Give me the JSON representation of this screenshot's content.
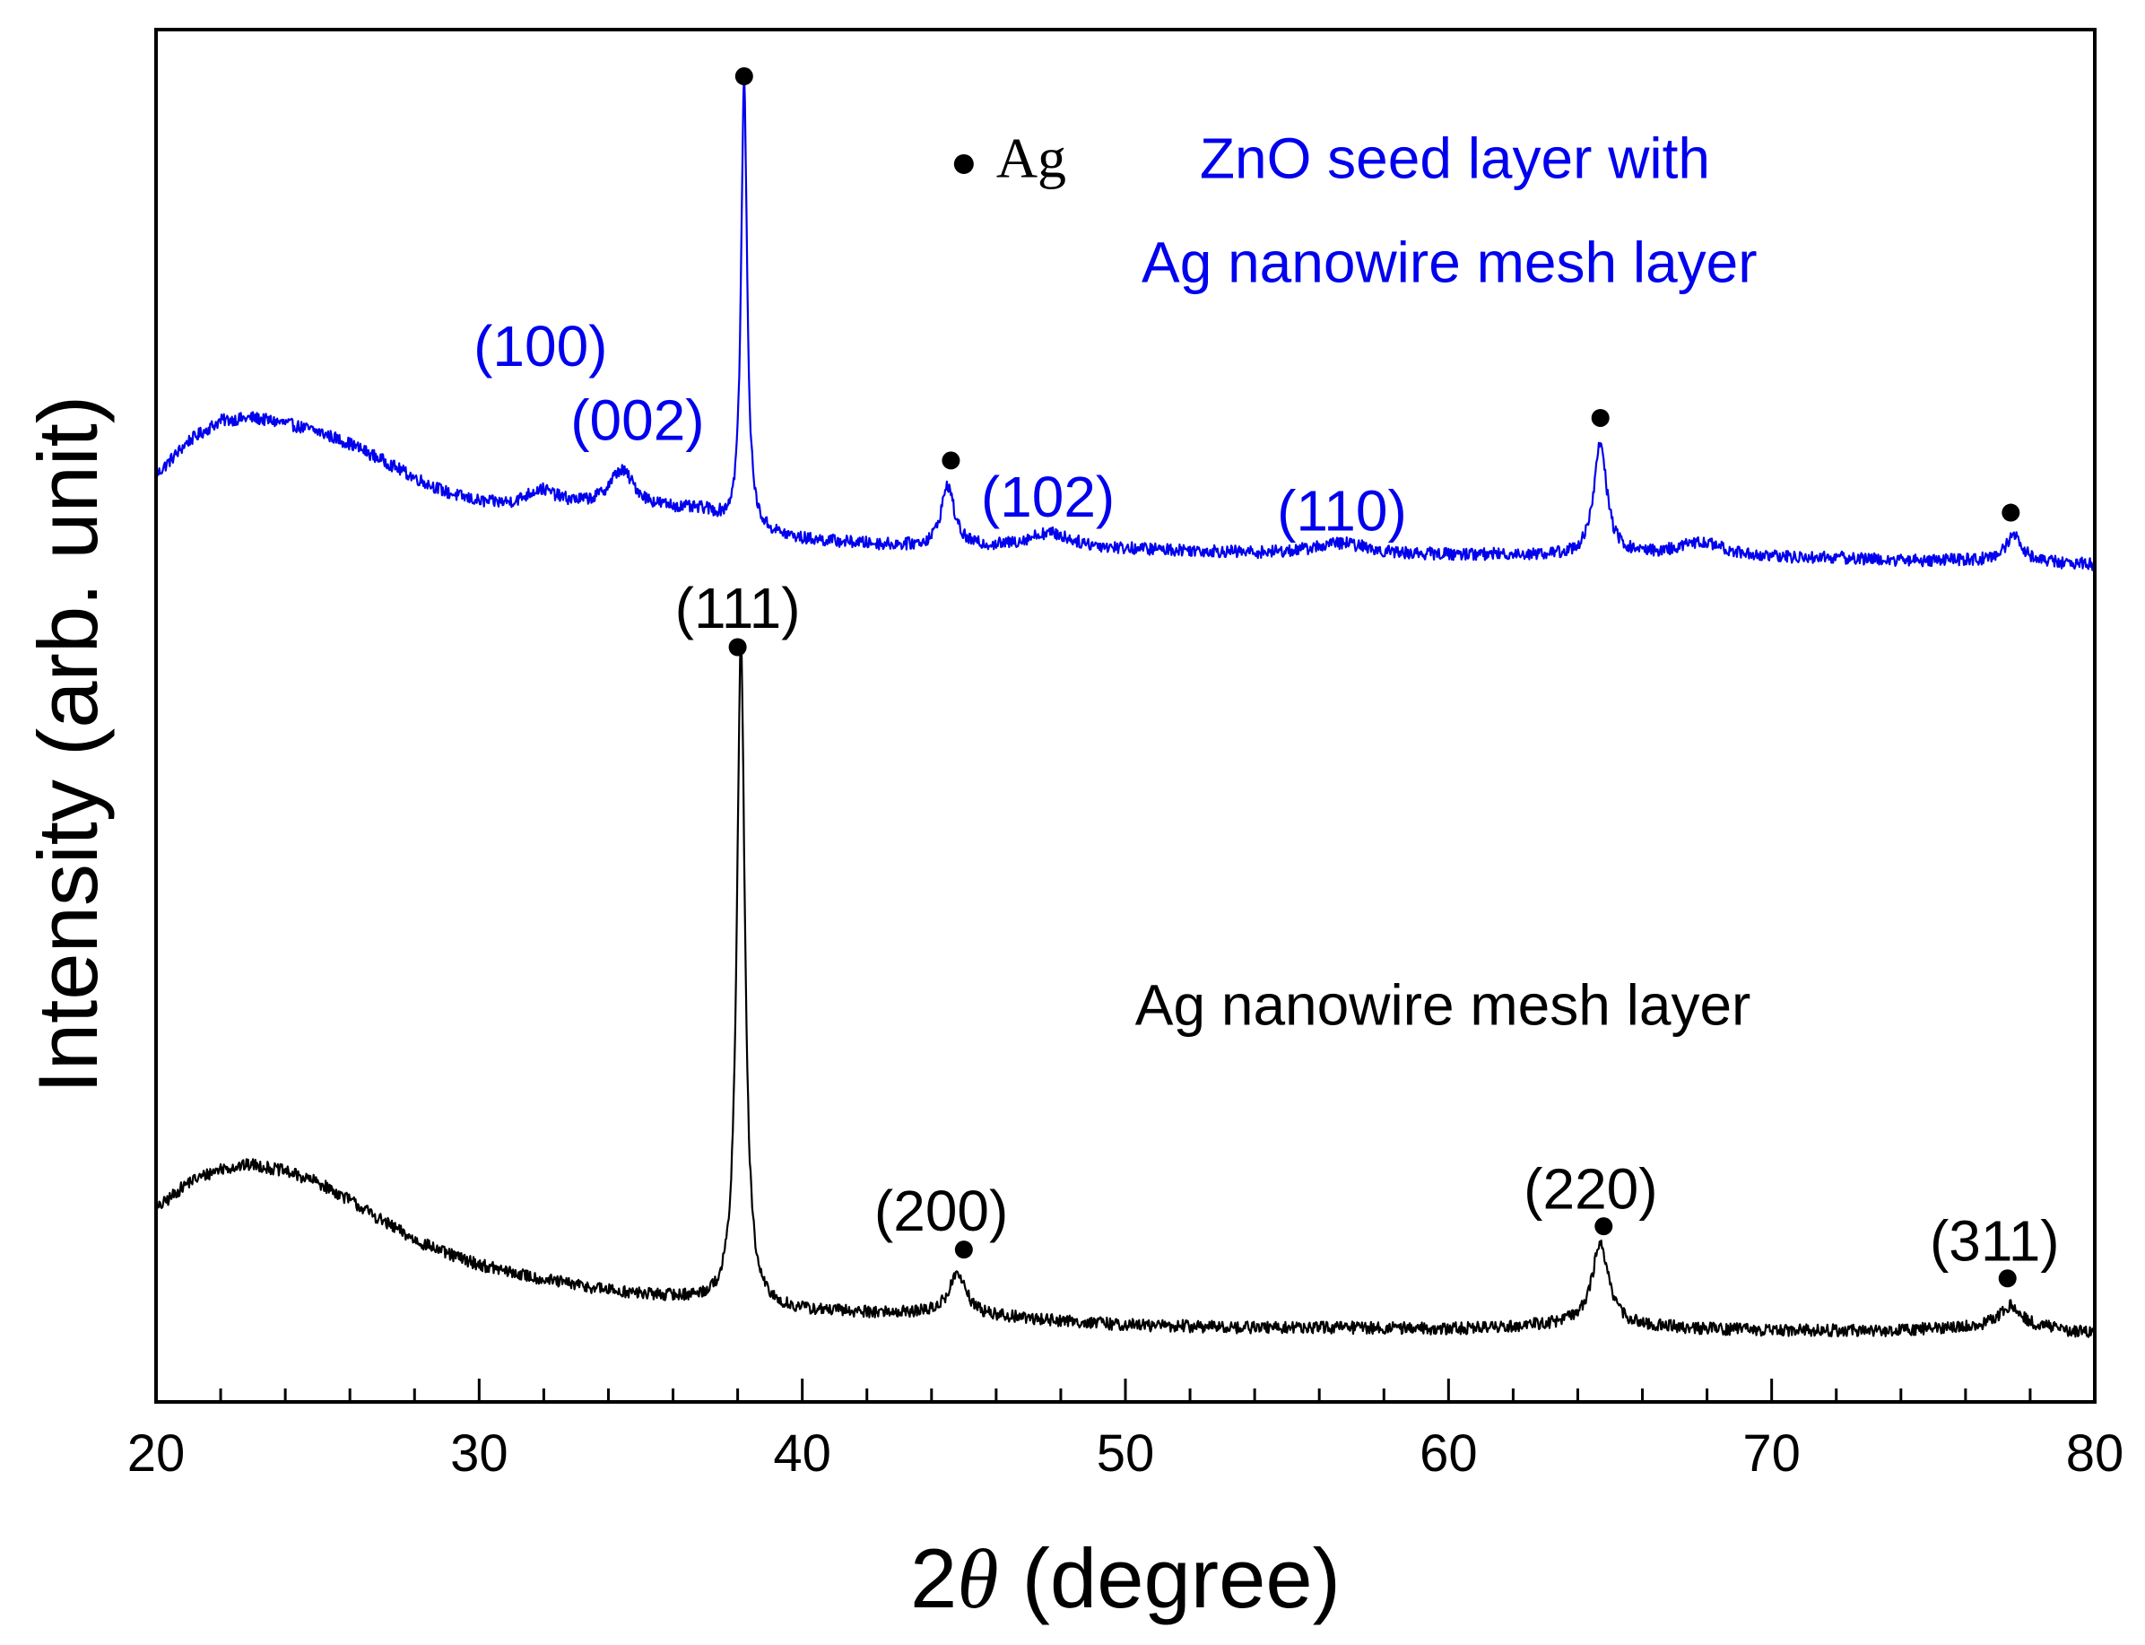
{
  "chart_data": {
    "type": "line",
    "title": "",
    "xlabel_prefix": "2",
    "xlabel_symbol": "θ",
    "xlabel_suffix": " (degree)",
    "ylabel": "Intensity (arb. unit)",
    "xlim": [
      20,
      80
    ],
    "ylim": [
      0,
      1
    ],
    "x_ticks": [
      20,
      30,
      40,
      50,
      60,
      70,
      80
    ],
    "x_tick_labels": [
      "20",
      "30",
      "40",
      "50",
      "60",
      "70",
      "80"
    ],
    "x_minor_step": 2,
    "grid": false,
    "colors": {
      "zno": "#0000ee",
      "ag": "#000000",
      "axis": "#000000"
    },
    "series": [
      {
        "name": "ZnO seed layer with Ag nanowire mesh layer",
        "color": "#0000ee",
        "baseline": [
          [
            20,
            0.675
          ],
          [
            21,
            0.7
          ],
          [
            22,
            0.715
          ],
          [
            23,
            0.717
          ],
          [
            24,
            0.713
          ],
          [
            25,
            0.707
          ],
          [
            26,
            0.698
          ],
          [
            27,
            0.686
          ],
          [
            28,
            0.673
          ],
          [
            29,
            0.662
          ],
          [
            30,
            0.655
          ],
          [
            31,
            0.652
          ],
          [
            32,
            0.652
          ],
          [
            33,
            0.652
          ],
          [
            34,
            0.65
          ],
          [
            35,
            0.65
          ],
          [
            36,
            0.65
          ],
          [
            37,
            0.648
          ],
          [
            38,
            0.635
          ],
          [
            40,
            0.628
          ],
          [
            42,
            0.625
          ],
          [
            44,
            0.622
          ],
          [
            46,
            0.622
          ],
          [
            48,
            0.623
          ],
          [
            50,
            0.621
          ],
          [
            52,
            0.62
          ],
          [
            54,
            0.618
          ],
          [
            56,
            0.618
          ],
          [
            58,
            0.617
          ],
          [
            60,
            0.617
          ],
          [
            62,
            0.617
          ],
          [
            64,
            0.616
          ],
          [
            66,
            0.617
          ],
          [
            68,
            0.618
          ],
          [
            70,
            0.615
          ],
          [
            72,
            0.615
          ],
          [
            74,
            0.613
          ],
          [
            76,
            0.613
          ],
          [
            78,
            0.612
          ],
          [
            80,
            0.61
          ]
        ],
        "peaks": [
          {
            "x": 31.9,
            "h": 0.012,
            "w": 0.6
          },
          {
            "x": 34.4,
            "h": 0.028,
            "w": 0.5
          },
          {
            "x": 38.2,
            "h": 0.33,
            "w": 0.11
          },
          {
            "x": 44.5,
            "h": 0.045,
            "w": 0.25
          },
          {
            "x": 47.6,
            "h": 0.01,
            "w": 0.8
          },
          {
            "x": 56.7,
            "h": 0.008,
            "w": 1.0
          },
          {
            "x": 64.7,
            "h": 0.082,
            "w": 0.24
          },
          {
            "x": 67.8,
            "h": 0.008,
            "w": 0.8
          },
          {
            "x": 77.5,
            "h": 0.02,
            "w": 0.3
          }
        ],
        "noise": 0.0045
      },
      {
        "name": "Ag nanowire mesh layer",
        "color": "#000000",
        "baseline": [
          [
            20,
            0.14
          ],
          [
            21,
            0.16
          ],
          [
            22,
            0.17
          ],
          [
            23,
            0.173
          ],
          [
            24,
            0.168
          ],
          [
            25,
            0.16
          ],
          [
            26,
            0.147
          ],
          [
            27,
            0.132
          ],
          [
            28,
            0.118
          ],
          [
            29,
            0.108
          ],
          [
            30,
            0.1
          ],
          [
            31,
            0.094
          ],
          [
            32,
            0.089
          ],
          [
            33,
            0.085
          ],
          [
            34,
            0.081
          ],
          [
            35,
            0.078
          ],
          [
            36,
            0.076
          ],
          [
            37,
            0.073
          ],
          [
            38,
            0.068
          ],
          [
            40,
            0.066
          ],
          [
            42,
            0.065
          ],
          [
            44,
            0.064
          ],
          [
            46,
            0.062
          ],
          [
            48,
            0.059
          ],
          [
            50,
            0.056
          ],
          [
            52,
            0.055
          ],
          [
            54,
            0.054
          ],
          [
            56,
            0.054
          ],
          [
            58,
            0.054
          ],
          [
            60,
            0.053
          ],
          [
            62,
            0.055
          ],
          [
            64,
            0.057
          ],
          [
            66,
            0.055
          ],
          [
            68,
            0.053
          ],
          [
            70,
            0.052
          ],
          [
            72,
            0.052
          ],
          [
            74,
            0.052
          ],
          [
            76,
            0.054
          ],
          [
            78,
            0.054
          ],
          [
            80,
            0.05
          ]
        ],
        "peaks": [
          {
            "x": 38.1,
            "h": 0.485,
            "w": 0.15
          },
          {
            "x": 44.8,
            "h": 0.03,
            "w": 0.32
          },
          {
            "x": 64.7,
            "h": 0.06,
            "w": 0.3
          },
          {
            "x": 77.4,
            "h": 0.016,
            "w": 0.42
          }
        ],
        "noise": 0.0045
      }
    ],
    "markers": [
      {
        "x": 38.2,
        "y": 0.966
      },
      {
        "x": 44.6,
        "y": 0.686
      },
      {
        "x": 64.7,
        "y": 0.717
      },
      {
        "x": 77.4,
        "y": 0.648
      },
      {
        "x": 38.0,
        "y": 0.55
      },
      {
        "x": 45.0,
        "y": 0.111
      },
      {
        "x": 64.8,
        "y": 0.128
      },
      {
        "x": 77.3,
        "y": 0.09
      }
    ],
    "legend": {
      "position": "top-center",
      "marker_label": "Ag",
      "x": 45.0,
      "y": 0.902
    },
    "annotations": [
      {
        "text": "ZnO seed layer with",
        "x": 52.3,
        "y": 0.903,
        "anchor": "start",
        "color": "#0000ee"
      },
      {
        "text": "Ag nanowire mesh layer",
        "x": 50.5,
        "y": 0.827,
        "anchor": "start",
        "color": "#0000ee"
      },
      {
        "text": "Ag nanowire mesh layer",
        "x": 50.3,
        "y": 0.286,
        "anchor": "start",
        "color": "#000000"
      },
      {
        "text": "(100)",
        "x": 31.9,
        "y": 0.766,
        "anchor": "middle",
        "color": "#0000ee"
      },
      {
        "text": "(002)",
        "x": 34.9,
        "y": 0.712,
        "anchor": "middle",
        "color": "#0000ee"
      },
      {
        "text": "(102)",
        "x": 47.6,
        "y": 0.656,
        "anchor": "middle",
        "color": "#0000ee"
      },
      {
        "text": "(110)",
        "x": 56.7,
        "y": 0.646,
        "anchor": "middle",
        "color": "#0000ee"
      },
      {
        "text": "(111)",
        "x": 38.0,
        "y": 0.575,
        "anchor": "middle",
        "color": "#000000"
      },
      {
        "text": "(200)",
        "x": 44.3,
        "y": 0.136,
        "anchor": "middle",
        "color": "#000000"
      },
      {
        "text": "(220)",
        "x": 64.4,
        "y": 0.152,
        "anchor": "middle",
        "color": "#000000"
      },
      {
        "text": "(311)",
        "x": 76.9,
        "y": 0.114,
        "anchor": "middle",
        "color": "#000000"
      }
    ]
  }
}
